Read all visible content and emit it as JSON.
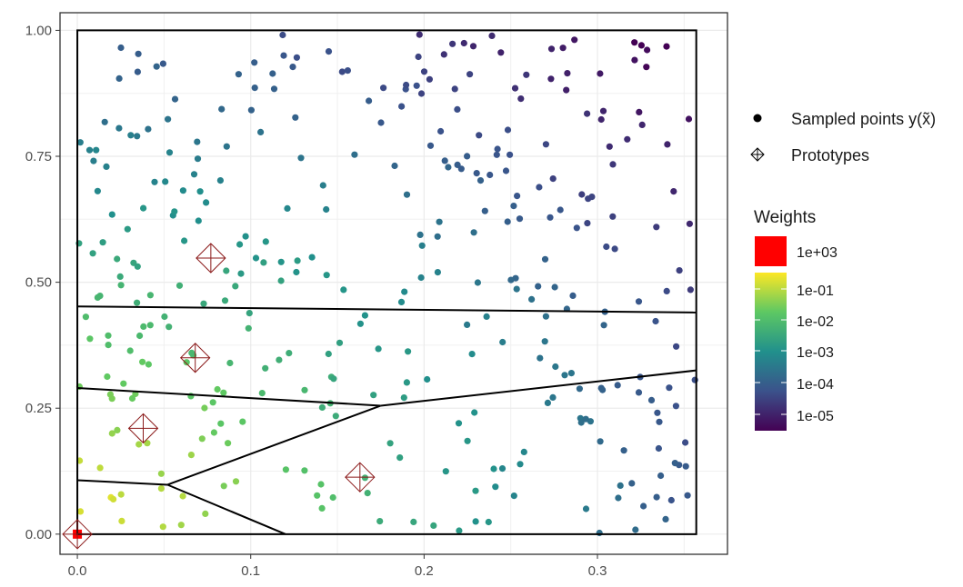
{
  "chart_data": {
    "type": "scatter",
    "title": "",
    "xlabel": "",
    "ylabel": "",
    "xlim": [
      -0.01,
      0.375
    ],
    "ylim": [
      -0.04,
      1.035
    ],
    "x_ticks": [
      0.0,
      0.1,
      0.2,
      0.3
    ],
    "x_tick_labels": [
      "0.0",
      "0.1",
      "0.2",
      "0.3"
    ],
    "y_ticks": [
      0.0,
      0.25,
      0.5,
      0.75,
      1.0
    ],
    "y_tick_labels": [
      "0.00",
      "0.25",
      "0.50",
      "0.75",
      "1.00"
    ],
    "grid": true,
    "legend_position": "right",
    "legend": {
      "entries": [
        {
          "label": "Sampled points y(x̃)",
          "icon": "filled-circle"
        },
        {
          "label": "Prototypes",
          "icon": "diamond-cross"
        }
      ],
      "colorbar_title": "Weights",
      "colorbar_labels": [
        "1e+03",
        "1e-01",
        "1e-02",
        "1e-03",
        "1e-04",
        "1e-05"
      ],
      "colorbar_colors": [
        "#440154",
        "#3b528b",
        "#21908c",
        "#5dc863",
        "#fde725"
      ],
      "special_color": "#ff0000"
    },
    "frame": [
      [
        0.0,
        0.0
      ],
      [
        0.357,
        0.0
      ],
      [
        0.357,
        1.0
      ],
      [
        0.0,
        1.0
      ]
    ],
    "cell_boundaries": [
      {
        "from": [
          0.0,
          0.452
        ],
        "to": [
          0.357,
          0.44
        ]
      },
      {
        "from": [
          0.0,
          0.29
        ],
        "to": [
          0.175,
          0.255
        ]
      },
      {
        "from": [
          0.175,
          0.255
        ],
        "to": [
          0.357,
          0.325
        ]
      },
      {
        "from": [
          0.0,
          0.107
        ],
        "to": [
          0.052,
          0.098
        ]
      },
      {
        "from": [
          0.052,
          0.098
        ],
        "to": [
          0.175,
          0.255
        ]
      },
      {
        "from": [
          0.052,
          0.098
        ],
        "to": [
          0.12,
          0.0
        ]
      }
    ],
    "prototypes": [
      {
        "x": 0.0,
        "y": 0.0
      },
      {
        "x": 0.038,
        "y": 0.21
      },
      {
        "x": 0.068,
        "y": 0.35
      },
      {
        "x": 0.077,
        "y": 0.548
      },
      {
        "x": 0.163,
        "y": 0.113
      }
    ],
    "special_point": {
      "x": 0.0,
      "y": 0.0,
      "weight_label": "1e+03"
    },
    "points_description": "approximately 350 sampled points uniformly spread in the unit frame; colour follows weight from yellow near the origin to dark purple at top-right",
    "points_count": 350
  }
}
